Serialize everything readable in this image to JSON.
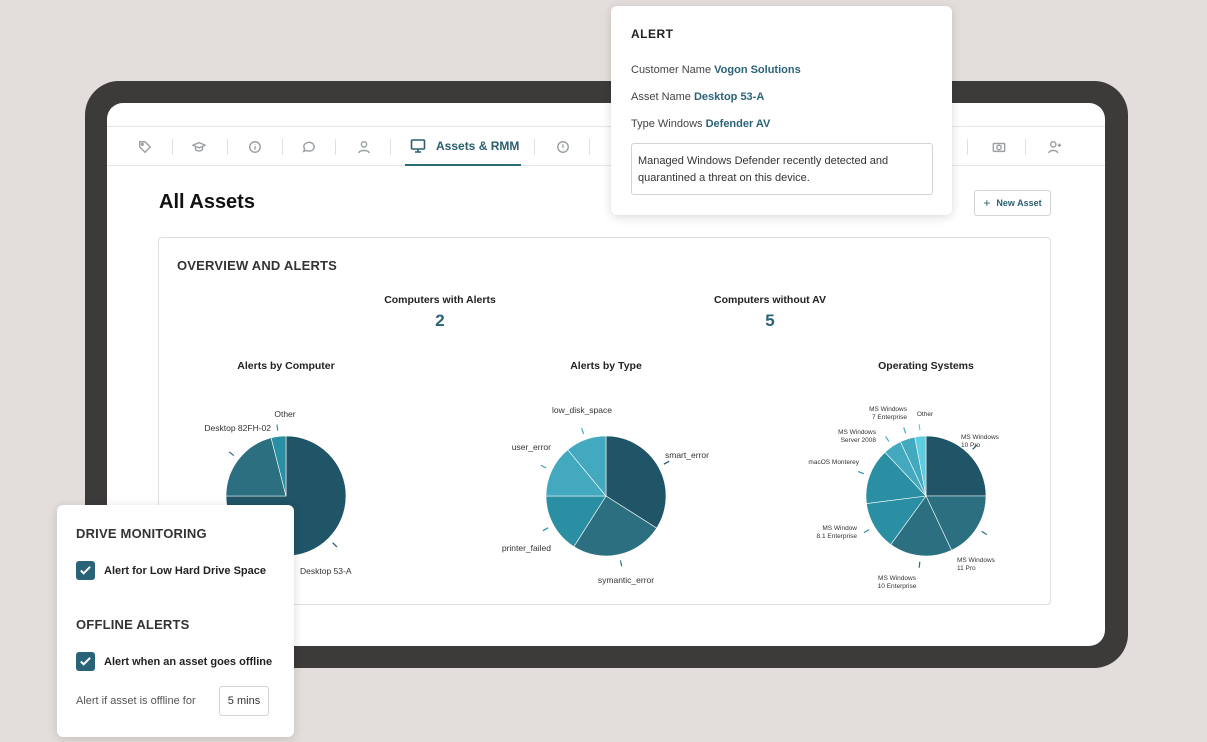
{
  "nav": {
    "active_label": "Assets & RMM"
  },
  "page": {
    "title": "All Assets",
    "new_asset_label": "New Asset"
  },
  "overview": {
    "title": "OVERVIEW AND ALERTS",
    "stats": [
      {
        "label": "Computers with Alerts",
        "value": "2"
      },
      {
        "label": "Computers without AV",
        "value": "5"
      }
    ]
  },
  "colors": {
    "dark_teal": "#1f5566",
    "mid_teal": "#2b6f80",
    "teal": "#2a8fa3",
    "light_teal": "#42a9bf",
    "accent": "#2a6377"
  },
  "chart_data": [
    {
      "type": "pie",
      "title": "Alerts by Computer",
      "slices": [
        {
          "label": "Desktop 53-A",
          "value": 75
        },
        {
          "label": "Desktop 82FH-02",
          "value": 21
        },
        {
          "label": "Other",
          "value": 4
        }
      ]
    },
    {
      "type": "pie",
      "title": "Alerts by Type",
      "slices": [
        {
          "label": "smart_error",
          "value": 34
        },
        {
          "label": "symantic_error",
          "value": 25
        },
        {
          "label": "printer_failed",
          "value": 16
        },
        {
          "label": "user_error",
          "value": 14
        },
        {
          "label": "low_disk_space",
          "value": 11
        }
      ]
    },
    {
      "type": "pie",
      "title": "Operating Systems",
      "slices": [
        {
          "label": "MS Windows 10 Pro",
          "value": 25
        },
        {
          "label": "MS Windows 11 Pro",
          "value": 18
        },
        {
          "label": "MS Windows 10 Enterprise",
          "value": 17
        },
        {
          "label": "MS Window 8.1 Enterprise",
          "value": 13
        },
        {
          "label": "macOS Monterey",
          "value": 15
        },
        {
          "label": "MS Windows Server 2008",
          "value": 5
        },
        {
          "label": "MS Windows 7 Enterprise",
          "value": 4
        },
        {
          "label": "Other",
          "value": 3
        }
      ]
    }
  ],
  "alert": {
    "title": "ALERT",
    "customer_label": "Customer Name",
    "customer_value": "Vogon Solutions",
    "asset_label": "Asset Name",
    "asset_value": "Desktop 53-A",
    "type_label": "Type Windows",
    "type_value": "Defender AV",
    "message": "Managed Windows Defender recently detected and quarantined a threat on this device."
  },
  "drive_monitoring": {
    "title": "DRIVE MONITORING",
    "low_space_label": "Alert for Low Hard Drive Space",
    "offline_title": "OFFLINE ALERTS",
    "offline_label": "Alert when an asset goes offline",
    "offline_for_label": "Alert if asset is offline for",
    "offline_for_value": "5 mins"
  }
}
